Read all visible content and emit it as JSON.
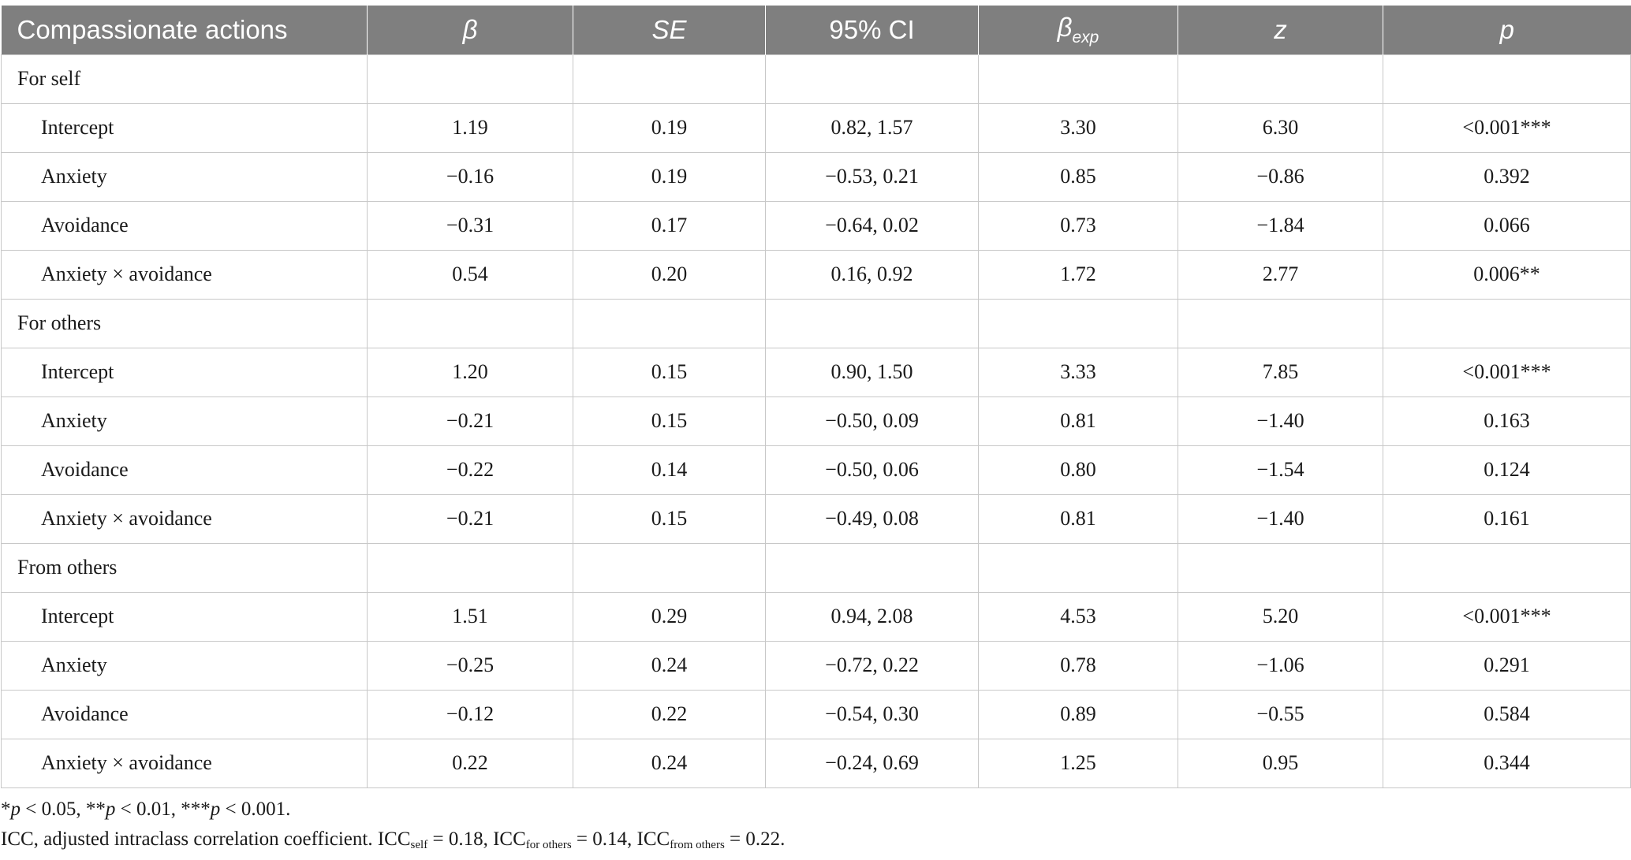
{
  "table": {
    "headers": {
      "label": "Compassionate actions",
      "beta": "β",
      "se": "SE",
      "ci": "95% CI",
      "beta_exp_base": "β",
      "beta_exp_sub": "exp",
      "z": "z",
      "p": "p"
    },
    "sections": [
      {
        "title": "For self",
        "rows": [
          {
            "label": "Intercept",
            "beta": "1.19",
            "se": "0.19",
            "ci": "0.82, 1.57",
            "beta_exp": "3.30",
            "z": "6.30",
            "p": "<0.001***"
          },
          {
            "label": "Anxiety",
            "beta": "−0.16",
            "se": "0.19",
            "ci": "−0.53, 0.21",
            "beta_exp": "0.85",
            "z": "−0.86",
            "p": "0.392"
          },
          {
            "label": "Avoidance",
            "beta": "−0.31",
            "se": "0.17",
            "ci": "−0.64, 0.02",
            "beta_exp": "0.73",
            "z": "−1.84",
            "p": "0.066"
          },
          {
            "label": "Anxiety × avoidance",
            "beta": "0.54",
            "se": "0.20",
            "ci": "0.16, 0.92",
            "beta_exp": "1.72",
            "z": "2.77",
            "p": "0.006**"
          }
        ]
      },
      {
        "title": "For others",
        "rows": [
          {
            "label": "Intercept",
            "beta": "1.20",
            "se": "0.15",
            "ci": "0.90, 1.50",
            "beta_exp": "3.33",
            "z": "7.85",
            "p": "<0.001***"
          },
          {
            "label": "Anxiety",
            "beta": "−0.21",
            "se": "0.15",
            "ci": "−0.50, 0.09",
            "beta_exp": "0.81",
            "z": "−1.40",
            "p": "0.163"
          },
          {
            "label": "Avoidance",
            "beta": "−0.22",
            "se": "0.14",
            "ci": "−0.50, 0.06",
            "beta_exp": "0.80",
            "z": "−1.54",
            "p": "0.124"
          },
          {
            "label": "Anxiety × avoidance",
            "beta": "−0.21",
            "se": "0.15",
            "ci": "−0.49, 0.08",
            "beta_exp": "0.81",
            "z": "−1.40",
            "p": "0.161"
          }
        ]
      },
      {
        "title": "From others",
        "rows": [
          {
            "label": "Intercept",
            "beta": "1.51",
            "se": "0.29",
            "ci": "0.94, 2.08",
            "beta_exp": "4.53",
            "z": "5.20",
            "p": "<0.001***"
          },
          {
            "label": "Anxiety",
            "beta": "−0.25",
            "se": "0.24",
            "ci": "−0.72, 0.22",
            "beta_exp": "0.78",
            "z": "−1.06",
            "p": "0.291"
          },
          {
            "label": "Avoidance",
            "beta": "−0.12",
            "se": "0.22",
            "ci": "−0.54, 0.30",
            "beta_exp": "0.89",
            "z": "−0.55",
            "p": "0.584"
          },
          {
            "label": "Anxiety × avoidance",
            "beta": "0.22",
            "se": "0.24",
            "ci": "−0.24, 0.69",
            "beta_exp": "1.25",
            "z": "0.95",
            "p": "0.344"
          }
        ]
      }
    ]
  },
  "notes": {
    "significance": [
      {
        "star": "*",
        "p": "p",
        "text": " < 0.05, "
      },
      {
        "star": "**",
        "p": "p",
        "text": " < 0.01, "
      },
      {
        "star": "***",
        "p": "p",
        "text": " < 0.001."
      }
    ],
    "icc": {
      "intro": "ICC, adjusted intraclass correlation coefficient. ",
      "items": [
        {
          "base": "ICC",
          "sub": "self",
          "value": " = 0.18, "
        },
        {
          "base": "ICC",
          "sub": "for others",
          "value": " = 0.14, "
        },
        {
          "base": "ICC",
          "sub": "from others",
          "value": " = 0.22."
        }
      ]
    }
  }
}
